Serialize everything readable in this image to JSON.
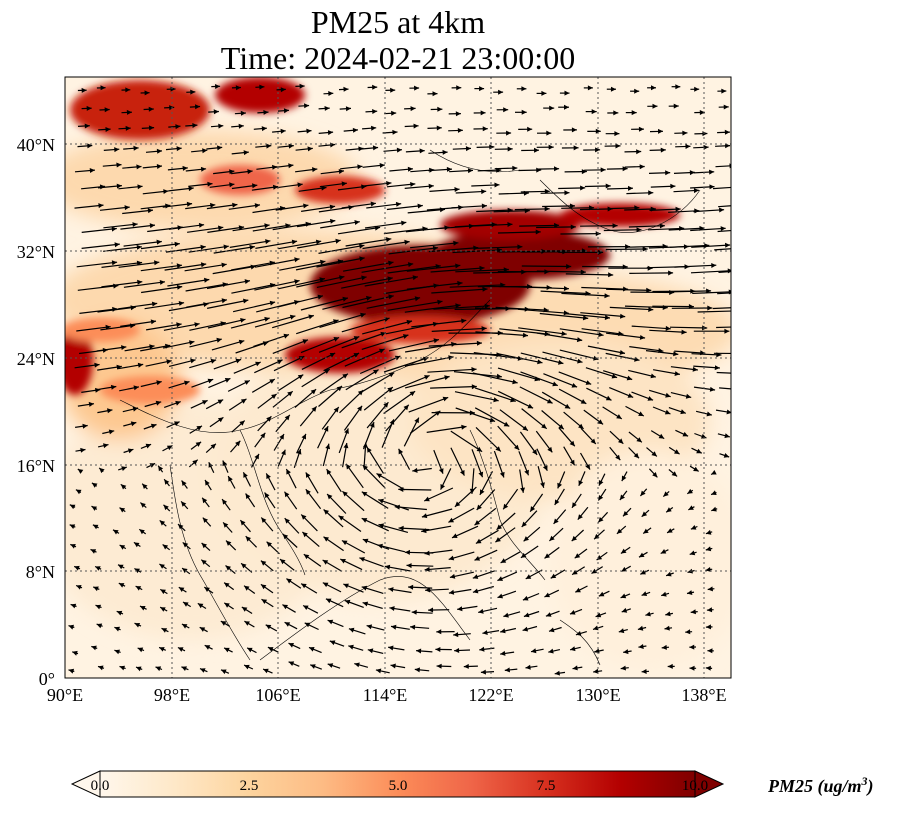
{
  "title": {
    "line1": "PM25 at 4km",
    "line2": "Time: 2024-02-21 23:00:00"
  },
  "map": {
    "variable": "PM25",
    "level": "4km",
    "time": "2024-02-21 23:00:00",
    "extent": {
      "lon": [
        90,
        140
      ],
      "lat": [
        0,
        45
      ]
    },
    "lat_ticks": [
      {
        "value": 40,
        "label": "40°N"
      },
      {
        "value": 32,
        "label": "32°N"
      },
      {
        "value": 24,
        "label": "24°N"
      },
      {
        "value": 16,
        "label": "16°N"
      },
      {
        "value": 8,
        "label": "8°N"
      },
      {
        "value": 0,
        "label": "0°"
      }
    ],
    "lon_ticks": [
      {
        "value": 90,
        "label": "90°E"
      },
      {
        "value": 98,
        "label": "98°E"
      },
      {
        "value": 106,
        "label": "106°E"
      },
      {
        "value": 114,
        "label": "114°E"
      },
      {
        "value": 122,
        "label": "122°E"
      },
      {
        "value": 130,
        "label": "130°E"
      },
      {
        "value": 138,
        "label": "138°E"
      }
    ],
    "gridlines": "dotted",
    "wind_vectors": "shown"
  },
  "colorbar": {
    "label": "PM25 (ug/m",
    "label_sup": "3",
    "label_close": ")",
    "min": 0.0,
    "max": 10.0,
    "ticks": [
      "0.0",
      "2.5",
      "5.0",
      "7.5",
      "10.0"
    ],
    "extend": "both",
    "colormap": [
      "#fff7ec",
      "#fee8c8",
      "#fdd49e",
      "#fdbb84",
      "#fc8d59",
      "#ef6548",
      "#d7301f",
      "#b30000",
      "#7f0000"
    ]
  }
}
